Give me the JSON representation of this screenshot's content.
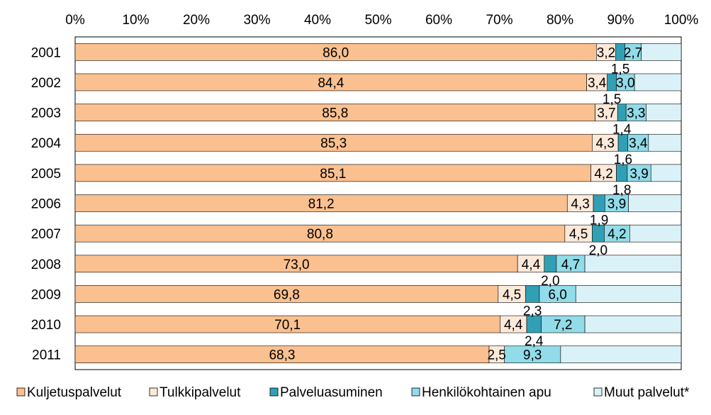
{
  "chart_data": {
    "type": "bar",
    "orientation": "horizontal",
    "stacked": true,
    "percent_stacked": true,
    "categories": [
      "2001",
      "2002",
      "2003",
      "2004",
      "2005",
      "2006",
      "2007",
      "2008",
      "2009",
      "2010",
      "2011"
    ],
    "series": [
      {
        "name": "Kuljetuspalvelut",
        "color": "#fac090",
        "values": [
          86.0,
          84.4,
          85.8,
          85.3,
          85.1,
          81.2,
          80.8,
          73.0,
          69.8,
          70.1,
          68.3
        ],
        "labels": [
          "86,0",
          "84,4",
          "85,8",
          "85,3",
          "85,1",
          "81,2",
          "80,8",
          "73,0",
          "69,8",
          "70,1",
          "68,3"
        ]
      },
      {
        "name": "Tulkkipalvelut",
        "color": "#fde9d9",
        "values": [
          3.2,
          3.4,
          3.7,
          4.3,
          4.2,
          4.3,
          4.5,
          4.4,
          4.5,
          4.4,
          2.5
        ],
        "labels": [
          "3,2",
          "3,4",
          "3,7",
          "4,3",
          "4,2",
          "4,3",
          "4,5",
          "4,4",
          "4,5",
          "4,4",
          "2,5"
        ]
      },
      {
        "name": "Palveluasuminen",
        "color": "#31a0b5",
        "values": [
          1.5,
          1.5,
          1.4,
          1.6,
          1.8,
          1.9,
          2.0,
          2.0,
          2.3,
          2.4,
          0.0
        ],
        "labels": [
          "1,5",
          "1,5",
          "1,4",
          "1,6",
          "1,8",
          "1,9",
          "2,0",
          "2,0",
          "2,3",
          "2,4",
          ""
        ]
      },
      {
        "name": "Henkilökohtainen apu",
        "color": "#92dbe8",
        "values": [
          2.7,
          3.0,
          3.3,
          3.4,
          3.9,
          3.9,
          4.2,
          4.7,
          6.0,
          7.2,
          9.3
        ],
        "labels": [
          "2,7",
          "3,0",
          "3,3",
          "3,4",
          "3,9",
          "3,9",
          "4,2",
          "4,7",
          "6,0",
          "7,2",
          "9,3"
        ]
      },
      {
        "name": "Muut palvelut*",
        "color": "#daf2f7",
        "values": [
          6.6,
          7.7,
          5.8,
          5.4,
          5.0,
          8.7,
          8.5,
          15.9,
          17.4,
          15.9,
          19.9
        ],
        "labels": [
          "",
          "",
          "",
          "",
          "",
          "",
          "",
          "",
          "",
          "",
          ""
        ]
      }
    ],
    "x_ticks": [
      "0%",
      "10%",
      "20%",
      "30%",
      "40%",
      "50%",
      "60%",
      "70%",
      "80%",
      "90%",
      "100%"
    ],
    "xlim": [
      0,
      100
    ],
    "legend_position": "bottom",
    "grid": false
  }
}
